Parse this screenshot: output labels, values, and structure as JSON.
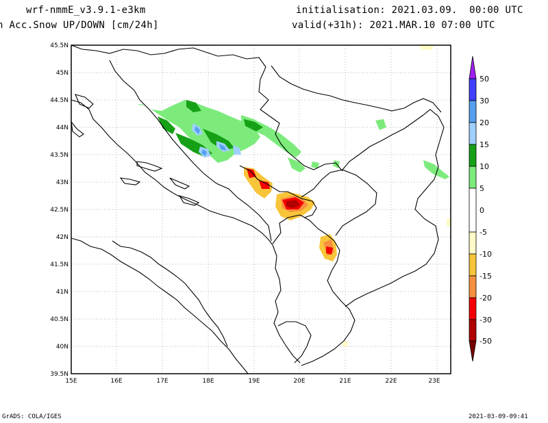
{
  "header": {
    "model": "wrf-nmmE_v3.9.1-e3km",
    "field": "n Acc.Snow UP/DOWN [cm/24h]",
    "init": "initialisation: 2021.03.09.  00:00 UTC",
    "valid": "valid(+31h): 2021.MAR.10 07:00 UTC"
  },
  "footer": {
    "left": "GrADS: COLA/IGES",
    "right": "2021-03-09-09:41"
  },
  "map": {
    "lat_labels": [
      "45.5N",
      "45N",
      "44.5N",
      "44N",
      "43.5N",
      "43N",
      "42.5N",
      "42N",
      "41.5N",
      "41N",
      "40.5N",
      "40N",
      "39.5N"
    ],
    "lon_labels": [
      "15E",
      "16E",
      "17E",
      "18E",
      "19E",
      "20E",
      "21E",
      "22E",
      "23E"
    ],
    "grid": true
  },
  "colorbar": {
    "labels": [
      "50",
      "30",
      "20",
      "15",
      "10",
      "5",
      "0",
      "-5",
      "-10",
      "-15",
      "-20",
      "-30",
      "-50"
    ],
    "colors": {
      "top_arrow": "#a020f0",
      "c50": "#4040ff",
      "c30": "#55a0f0",
      "c20": "#a0d0ff",
      "c15": "#16a016",
      "c10": "#7ceb7c",
      "c0": "#ffffff",
      "cm5": "#fffbc8",
      "cm10": "#f8c53a",
      "cm15": "#f89040",
      "cm20": "#f50000",
      "cm30": "#b00000",
      "bottom_arrow": "#7a0000"
    }
  }
}
